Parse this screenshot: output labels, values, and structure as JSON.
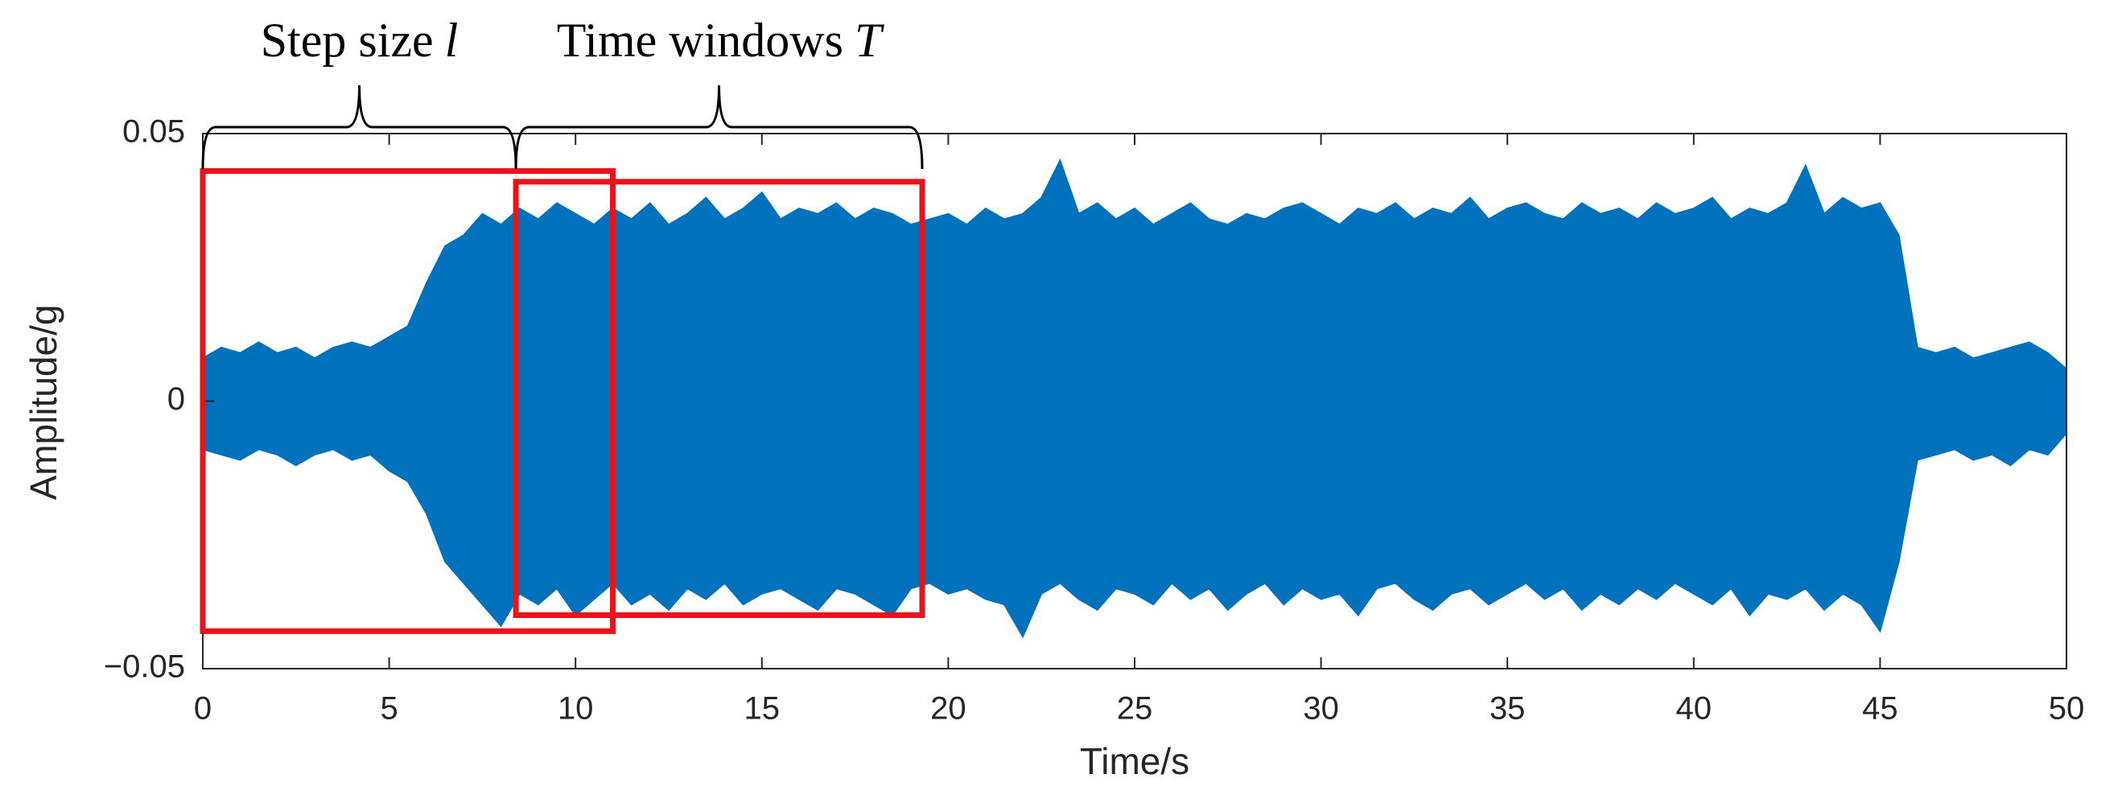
{
  "chart_data": {
    "type": "area",
    "color": "#0072bd",
    "xlabel": "Time/s",
    "ylabel": "Amplitude/g",
    "xlim": [
      0,
      50
    ],
    "ylim": [
      -0.05,
      0.05
    ],
    "xticks": [
      0,
      5,
      10,
      15,
      20,
      25,
      30,
      35,
      40,
      45,
      50
    ],
    "yticks": [
      {
        "value": -0.05,
        "label": "−0.05"
      },
      0,
      0.05
    ],
    "x": [
      0,
      0.5,
      1,
      1.5,
      2,
      2.5,
      3,
      3.5,
      4,
      4.5,
      5,
      5.5,
      6,
      6.5,
      7,
      7.5,
      8,
      8.5,
      9,
      9.5,
      10,
      10.5,
      11,
      11.5,
      12,
      12.5,
      13,
      13.5,
      14,
      14.5,
      15,
      15.5,
      16,
      16.5,
      17,
      17.5,
      18,
      18.5,
      19,
      19.5,
      20,
      20.5,
      21,
      21.5,
      22,
      22.5,
      23,
      23.5,
      24,
      24.5,
      25,
      25.5,
      26,
      26.5,
      27,
      27.5,
      28,
      28.5,
      29,
      29.5,
      30,
      30.5,
      31,
      31.5,
      32,
      32.5,
      33,
      33.5,
      34,
      34.5,
      35,
      35.5,
      36,
      36.5,
      37,
      37.5,
      38,
      38.5,
      39,
      39.5,
      40,
      40.5,
      41,
      41.5,
      42,
      42.5,
      43,
      43.5,
      44,
      44.5,
      45,
      45.5,
      46,
      46.5,
      47,
      47.5,
      48,
      48.5,
      49,
      49.5,
      50
    ],
    "upper": [
      0.008,
      0.01,
      0.009,
      0.011,
      0.009,
      0.01,
      0.008,
      0.01,
      0.011,
      0.01,
      0.012,
      0.014,
      0.022,
      0.029,
      0.031,
      0.035,
      0.033,
      0.036,
      0.034,
      0.037,
      0.035,
      0.033,
      0.036,
      0.034,
      0.037,
      0.033,
      0.035,
      0.038,
      0.034,
      0.036,
      0.039,
      0.034,
      0.036,
      0.035,
      0.037,
      0.034,
      0.036,
      0.035,
      0.033,
      0.034,
      0.035,
      0.033,
      0.036,
      0.034,
      0.035,
      0.038,
      0.045,
      0.035,
      0.037,
      0.034,
      0.036,
      0.033,
      0.035,
      0.037,
      0.034,
      0.033,
      0.035,
      0.034,
      0.036,
      0.037,
      0.035,
      0.033,
      0.036,
      0.035,
      0.037,
      0.034,
      0.036,
      0.035,
      0.038,
      0.034,
      0.036,
      0.037,
      0.035,
      0.034,
      0.037,
      0.035,
      0.036,
      0.034,
      0.037,
      0.035,
      0.036,
      0.038,
      0.034,
      0.036,
      0.035,
      0.037,
      0.044,
      0.035,
      0.038,
      0.036,
      0.037,
      0.031,
      0.01,
      0.009,
      0.01,
      0.008,
      0.009,
      0.01,
      0.011,
      0.009,
      0.006
    ],
    "lower": [
      -0.009,
      -0.01,
      -0.011,
      -0.009,
      -0.01,
      -0.012,
      -0.01,
      -0.009,
      -0.011,
      -0.01,
      -0.013,
      -0.015,
      -0.021,
      -0.03,
      -0.034,
      -0.038,
      -0.042,
      -0.036,
      -0.038,
      -0.035,
      -0.04,
      -0.037,
      -0.034,
      -0.038,
      -0.036,
      -0.039,
      -0.035,
      -0.037,
      -0.034,
      -0.038,
      -0.036,
      -0.035,
      -0.037,
      -0.039,
      -0.035,
      -0.036,
      -0.038,
      -0.04,
      -0.035,
      -0.034,
      -0.036,
      -0.035,
      -0.037,
      -0.038,
      -0.044,
      -0.036,
      -0.034,
      -0.037,
      -0.039,
      -0.035,
      -0.036,
      -0.038,
      -0.034,
      -0.037,
      -0.035,
      -0.039,
      -0.036,
      -0.034,
      -0.038,
      -0.035,
      -0.037,
      -0.036,
      -0.04,
      -0.035,
      -0.034,
      -0.037,
      -0.039,
      -0.036,
      -0.035,
      -0.038,
      -0.036,
      -0.034,
      -0.037,
      -0.035,
      -0.039,
      -0.036,
      -0.038,
      -0.035,
      -0.037,
      -0.034,
      -0.036,
      -0.038,
      -0.035,
      -0.04,
      -0.036,
      -0.037,
      -0.035,
      -0.039,
      -0.036,
      -0.038,
      -0.043,
      -0.03,
      -0.011,
      -0.01,
      -0.009,
      -0.011,
      -0.01,
      -0.012,
      -0.009,
      -0.01,
      -0.006
    ],
    "windows": [
      {
        "x": [
          0,
          11
        ],
        "y": [
          -0.043,
          0.043
        ],
        "color": "#e8141a"
      },
      {
        "x": [
          8.4,
          19.3
        ],
        "y": [
          -0.04,
          0.041
        ],
        "color": "#e8141a"
      }
    ],
    "braces": [
      {
        "text": "Step size",
        "symbol": "l",
        "x": [
          0,
          8.4
        ]
      },
      {
        "text": "Time windows",
        "symbol": "T",
        "x": [
          8.4,
          19.3
        ]
      }
    ]
  }
}
